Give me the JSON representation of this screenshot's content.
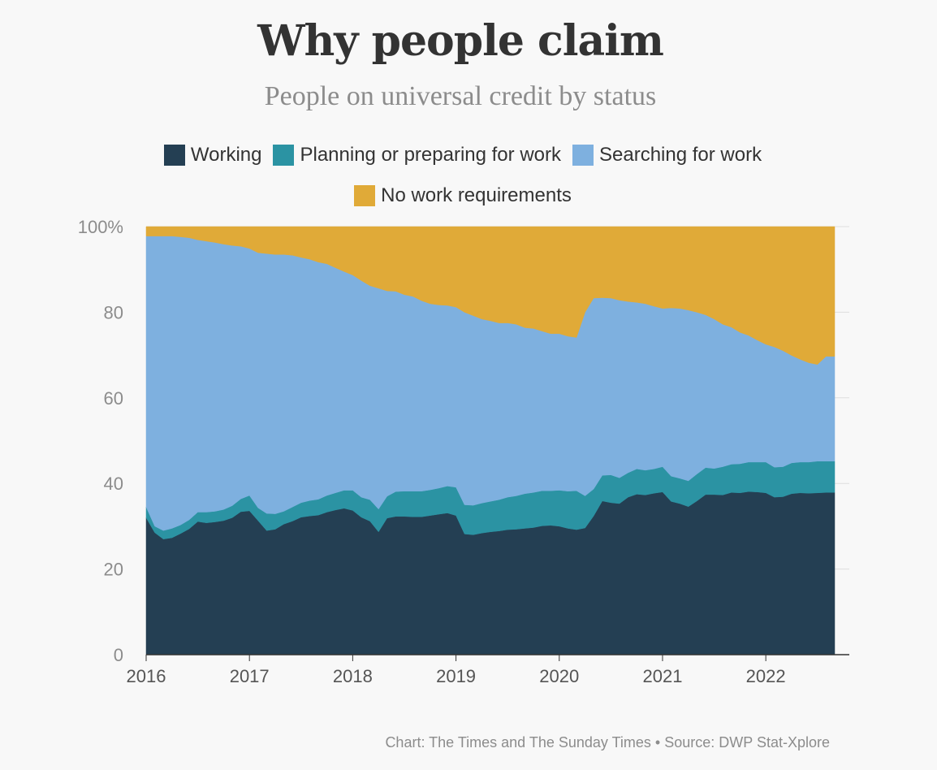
{
  "title": "Why people claim",
  "subtitle": "People on universal credit by status",
  "source": "Chart: The Times and The Sunday Times • Source: DWP Stat-Xplore",
  "colors": {
    "working": "#243f53",
    "planning": "#2b93a3",
    "searching": "#7eb0df",
    "no_work": "#e0aa38",
    "grid": "#dedede",
    "axis": "#333333"
  },
  "chart_data": {
    "type": "area",
    "stacked": true,
    "normalized": true,
    "title": "Why people claim",
    "subtitle": "People on universal credit by status",
    "xlabel": "",
    "ylabel": "",
    "ylim": [
      0,
      100
    ],
    "y_ticks": [
      0,
      20,
      40,
      60,
      80,
      100
    ],
    "y_tick_labels": [
      "0",
      "20",
      "40",
      "60",
      "80",
      "100%"
    ],
    "x_ticks": [
      2016,
      2017,
      2018,
      2019,
      2020,
      2021,
      2022
    ],
    "x_tick_labels": [
      "2016",
      "2017",
      "2018",
      "2019",
      "2020",
      "2021",
      "2022"
    ],
    "xlim": [
      2016.0,
      2022.667
    ],
    "grid": true,
    "legend_position": "top",
    "x": [
      2016.0,
      2016.083,
      2016.167,
      2016.25,
      2016.333,
      2016.417,
      2016.5,
      2016.583,
      2016.667,
      2016.75,
      2016.833,
      2016.917,
      2017.0,
      2017.083,
      2017.167,
      2017.25,
      2017.333,
      2017.417,
      2017.5,
      2017.583,
      2017.667,
      2017.75,
      2017.833,
      2017.917,
      2018.0,
      2018.083,
      2018.167,
      2018.25,
      2018.333,
      2018.417,
      2018.5,
      2018.583,
      2018.667,
      2018.75,
      2018.833,
      2018.917,
      2019.0,
      2019.083,
      2019.167,
      2019.25,
      2019.333,
      2019.417,
      2019.5,
      2019.583,
      2019.667,
      2019.75,
      2019.833,
      2019.917,
      2020.0,
      2020.083,
      2020.167,
      2020.25,
      2020.333,
      2020.417,
      2020.5,
      2020.583,
      2020.667,
      2020.75,
      2020.833,
      2020.917,
      2021.0,
      2021.083,
      2021.167,
      2021.25,
      2021.333,
      2021.417,
      2021.5,
      2021.583,
      2021.667,
      2021.75,
      2021.833,
      2021.917,
      2022.0,
      2022.083,
      2022.167,
      2022.25,
      2022.333,
      2022.417,
      2022.5,
      2022.583,
      2022.667
    ],
    "series": [
      {
        "name": "Working",
        "values": [
          32.0,
          28.5,
          27.0,
          27.3,
          28.3,
          29.4,
          31.1,
          30.8,
          31.0,
          31.3,
          32.0,
          33.4,
          33.6,
          31.3,
          29.0,
          29.3,
          30.5,
          31.2,
          32.1,
          32.4,
          32.6,
          33.3,
          33.8,
          34.2,
          33.7,
          32.1,
          31.2,
          28.7,
          31.9,
          32.3,
          32.3,
          32.2,
          32.2,
          32.5,
          32.8,
          33.1,
          32.5,
          28.2,
          28.0,
          28.4,
          28.7,
          28.9,
          29.2,
          29.3,
          29.5,
          29.7,
          30.1,
          30.2,
          30.0,
          29.5,
          29.2,
          29.6,
          32.4,
          35.9,
          35.5,
          35.3,
          36.8,
          37.5,
          37.3,
          37.7,
          38.0,
          35.8,
          35.3,
          34.6,
          35.9,
          37.4,
          37.4,
          37.3,
          37.9,
          37.8,
          38.1,
          38.0,
          37.8,
          36.8,
          36.9,
          37.6,
          37.8,
          37.7,
          37.8,
          37.9,
          37.9
        ]
      },
      {
        "name": "Planning or preparing for work",
        "values": [
          2.5,
          1.5,
          2.0,
          2.2,
          2.0,
          2.1,
          2.2,
          2.5,
          2.5,
          2.6,
          2.8,
          3.0,
          3.6,
          3.0,
          4.0,
          3.6,
          3.0,
          3.3,
          3.4,
          3.6,
          3.7,
          3.9,
          4.0,
          4.2,
          4.7,
          4.7,
          5.0,
          5.3,
          5.1,
          5.8,
          5.9,
          6.0,
          6.0,
          6.0,
          6.1,
          6.3,
          6.6,
          6.8,
          6.9,
          7.0,
          7.1,
          7.3,
          7.6,
          7.8,
          8.1,
          8.2,
          8.2,
          8.1,
          8.4,
          8.7,
          9.1,
          7.5,
          6.3,
          6.0,
          6.5,
          6.0,
          5.7,
          5.9,
          5.8,
          5.7,
          5.9,
          5.9,
          5.9,
          6.0,
          6.3,
          6.3,
          6.1,
          6.6,
          6.6,
          6.8,
          6.9,
          7.0,
          7.2,
          7.0,
          7.0,
          7.2,
          7.2,
          7.3,
          7.4,
          7.3,
          7.3
        ]
      },
      {
        "name": "Searching for work",
        "values": [
          63.3,
          67.8,
          68.8,
          68.3,
          67.3,
          65.9,
          63.6,
          63.3,
          62.8,
          62.0,
          60.8,
          59.0,
          57.7,
          59.6,
          60.7,
          60.6,
          60.0,
          58.8,
          57.3,
          56.4,
          55.4,
          54.1,
          52.6,
          51.1,
          50.3,
          50.6,
          50.0,
          51.6,
          48.0,
          46.8,
          45.9,
          45.5,
          44.5,
          43.5,
          42.8,
          42.2,
          42.1,
          45.0,
          44.3,
          43.0,
          42.2,
          41.3,
          40.7,
          40.1,
          38.8,
          38.3,
          37.3,
          36.7,
          36.6,
          36.2,
          35.8,
          42.9,
          44.6,
          41.5,
          41.3,
          41.5,
          40.0,
          38.9,
          38.9,
          38.0,
          37.0,
          39.3,
          39.7,
          39.9,
          37.8,
          35.7,
          34.9,
          33.3,
          32.0,
          30.7,
          29.6,
          28.5,
          27.5,
          28.1,
          27.1,
          25.1,
          24.0,
          23.2,
          22.6,
          24.5,
          24.5
        ]
      },
      {
        "name": "No work requirements",
        "values": [
          2.2,
          2.2,
          2.2,
          2.2,
          2.4,
          2.6,
          3.1,
          3.4,
          3.7,
          4.1,
          4.4,
          4.6,
          5.1,
          6.1,
          6.3,
          6.5,
          6.5,
          6.7,
          7.2,
          7.6,
          8.3,
          8.7,
          9.6,
          10.5,
          11.3,
          12.6,
          13.8,
          14.4,
          15.0,
          15.1,
          15.9,
          16.3,
          17.3,
          18.0,
          18.3,
          18.4,
          18.8,
          20.0,
          20.8,
          21.6,
          22.0,
          22.5,
          22.5,
          22.8,
          23.6,
          23.8,
          24.4,
          25.0,
          25.0,
          25.6,
          25.9,
          20.0,
          16.7,
          16.6,
          16.7,
          17.2,
          17.5,
          17.7,
          18.0,
          18.6,
          19.1,
          19.0,
          19.1,
          19.5,
          20.0,
          20.6,
          21.6,
          22.8,
          23.5,
          24.7,
          25.4,
          26.5,
          27.5,
          28.1,
          29.0,
          30.1,
          31.0,
          31.8,
          32.2,
          30.3,
          30.3
        ]
      }
    ]
  }
}
